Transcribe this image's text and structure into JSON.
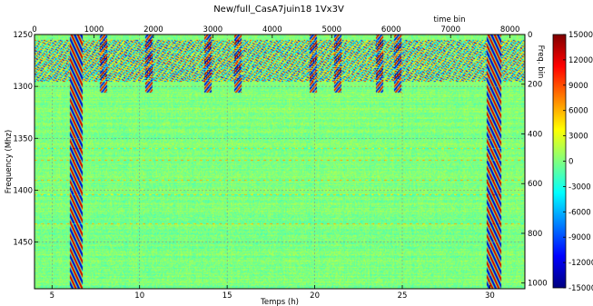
{
  "chart_data": {
    "type": "heatmap",
    "title": "New/full_CasA7juin18 1Vx3V",
    "xlabel": "Temps (h)",
    "ylabel": "Frequency (Mhz)",
    "x2label": "time bin",
    "y2label": "Freq. bin",
    "xlim": [
      4.0,
      32.0
    ],
    "ylim": [
      1250,
      1495
    ],
    "x2lim": [
      0,
      8250
    ],
    "y2lim": [
      0,
      1023
    ],
    "x_ticks": [
      "5",
      "10",
      "15",
      "20",
      "25",
      "30"
    ],
    "y_ticks": [
      "1250",
      "1300",
      "1350",
      "1400",
      "1450"
    ],
    "x2_ticks": [
      "0",
      "1000",
      "2000",
      "3000",
      "4000",
      "5000",
      "6000",
      "7000",
      "8000"
    ],
    "y2_ticks": [
      "0",
      "200",
      "400",
      "600",
      "800",
      "1000"
    ],
    "colorbar": {
      "min": -15000,
      "max": 15000,
      "ticks": [
        "15000",
        "12000",
        "9000",
        "6000",
        "3000",
        "0",
        "-3000",
        "-6000",
        "-9000",
        "-12000",
        "-15000"
      ],
      "colormap": [
        "#00007f",
        "#0000ff",
        "#007fff",
        "#00ffff",
        "#7fff7f",
        "#ffff00",
        "#ff7f00",
        "#ff0000",
        "#7f0000"
      ]
    },
    "grid": true,
    "features": {
      "fringe_bands_hours": [
        [
          6.0,
          6.7
        ],
        [
          29.8,
          30.6
        ]
      ],
      "rfi_band_mhz": [
        1255,
        1295
      ],
      "horizontal_rfi_lines_mhz": [
        1359,
        1371,
        1390,
        1404,
        1432
      ],
      "burst_columns_hours": [
        7.9,
        10.5,
        13.9,
        15.6,
        19.9,
        21.3,
        23.7,
        24.7
      ]
    }
  }
}
